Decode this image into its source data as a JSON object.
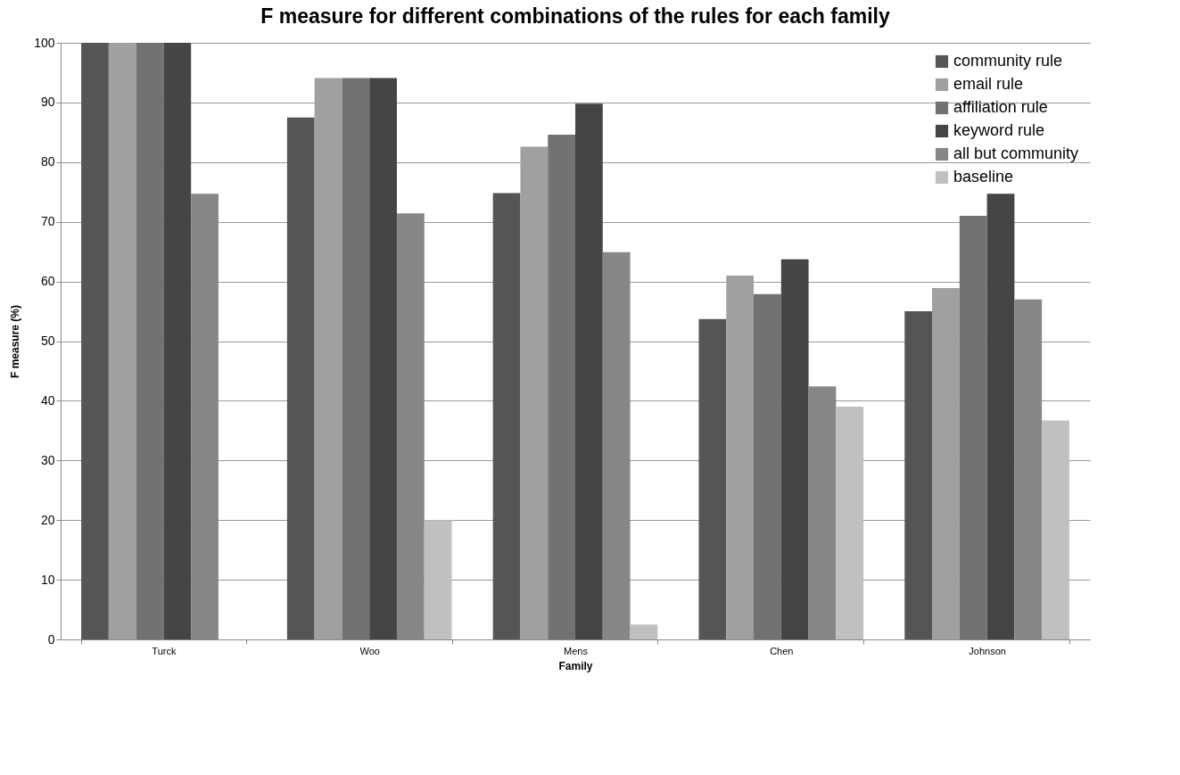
{
  "chart_data": {
    "type": "bar",
    "title": "F measure for different combinations of the rules for each family",
    "xlabel": "Family",
    "ylabel": "F measure (%)",
    "categories": [
      "Turck",
      "Woo",
      "Mens",
      "Chen",
      "Johnson"
    ],
    "series": [
      {
        "name": "community rule",
        "color": "#555555",
        "values": [
          100,
          87.5,
          74.8,
          53.7,
          55
        ]
      },
      {
        "name": "email rule",
        "color": "#a0a0a0",
        "values": [
          100,
          94.1,
          82.6,
          61,
          58.9
        ]
      },
      {
        "name": "affiliation rule",
        "color": "#727272",
        "values": [
          100,
          94.1,
          84.6,
          57.9,
          71
        ]
      },
      {
        "name": "keyword rule",
        "color": "#454545",
        "values": [
          100,
          94.1,
          89.8,
          63.7,
          74.7
        ]
      },
      {
        "name": "all but community",
        "color": "#878787",
        "values": [
          74.7,
          71.4,
          64.9,
          42.4,
          57
        ]
      },
      {
        "name": "baseline",
        "color": "#c0c0c0",
        "values": [
          null,
          20,
          2.5,
          39,
          36.7
        ]
      }
    ],
    "ylim": [
      0,
      100
    ],
    "yticks": [
      0,
      10,
      20,
      30,
      40,
      50,
      60,
      70,
      80,
      90,
      100
    ],
    "grid": "y",
    "legend": "top right"
  }
}
